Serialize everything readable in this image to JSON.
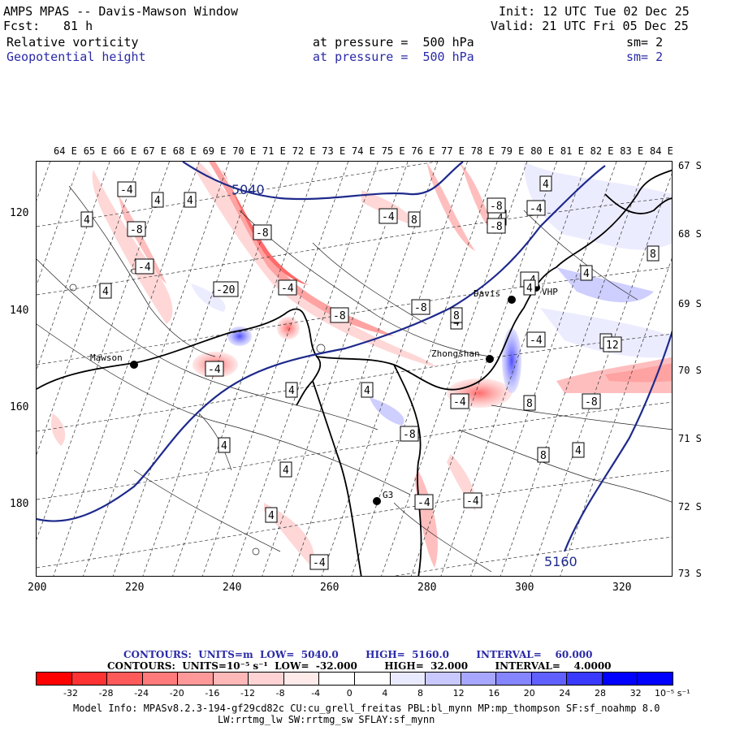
{
  "header": {
    "title": "AMPS MPAS -- Davis-Mawson Window",
    "fcst_label": "Fcst:",
    "fcst_value": "81 h",
    "init": "Init: 12 UTC Tue 02 Dec 25",
    "valid": "Valid: 21 UTC Fri 05 Dec 25",
    "field1": "Relative vorticity",
    "field1_level": "at pressure =  500 hPa",
    "field1_sm": "sm= 2",
    "field2": "Geopotential height",
    "field2_level": "at pressure =  500 hPa",
    "field2_sm": "sm= 2"
  },
  "map": {
    "top_lon_labels": [
      "64 E",
      "65 E",
      "66 E",
      "67 E",
      "68 E",
      "69 E",
      "70 E",
      "71 E",
      "72 E",
      "73 E",
      "74 E",
      "75 E",
      "76 E",
      "77 E",
      "78 E",
      "79 E",
      "80 E",
      "81 E",
      "82 E",
      "83 E",
      "84 E"
    ],
    "right_lat_labels": [
      "67 S",
      "68 S",
      "69 S",
      "70 S",
      "71 S",
      "72 S",
      "73 S"
    ],
    "left_y_labels": [
      "120",
      "140",
      "160",
      "180"
    ],
    "bottom_x_labels": [
      "200",
      "220",
      "240",
      "260",
      "280",
      "300",
      "320"
    ],
    "stations": [
      {
        "name": "Mawson"
      },
      {
        "name": "Davis"
      },
      {
        "name": "VHP"
      },
      {
        "name": "Zhongshan"
      },
      {
        "name": "G3"
      }
    ],
    "height_labels": [
      "5040",
      "5160"
    ],
    "vort_labels": [
      "-4",
      "4",
      "4",
      "4",
      "-8",
      "-4",
      "4",
      "-20",
      "-8",
      "-4",
      "-8",
      "-4",
      "8",
      "-8",
      "-4",
      "4",
      "8",
      "-4",
      "-8",
      "4",
      "-4",
      "4",
      "8",
      "8",
      "12",
      "4",
      "-8",
      "-4",
      "-4",
      "4",
      "8",
      "-8",
      "8",
      "4",
      "4",
      "4",
      "4",
      "-4",
      "-4",
      "-4",
      "-8",
      "-4",
      "4"
    ],
    "colors": {
      "coast": "#000000",
      "height": "#1e2a8c",
      "thin": "#222222"
    }
  },
  "footer": {
    "contours1": "CONTOURS:  UNITS=m  LOW=  5040.0        HIGH=  5160.0        INTERVAL=    60.000",
    "contours2": "CONTOURS:  UNITS=10⁻⁵ s⁻¹  LOW=  -32.000        HIGH=  32.000        INTERVAL=    4.0000",
    "colorbar_ticks": [
      "-32",
      "-28",
      "-24",
      "-20",
      "-16",
      "-12",
      "-8",
      "-4",
      "0",
      "4",
      "8",
      "12",
      "16",
      "20",
      "24",
      "28",
      "32"
    ],
    "colorbar_units": "10⁻⁵ s⁻¹",
    "colorbar_colors": [
      "#ff0000",
      "#ff3333",
      "#ff5a5a",
      "#ff7a7a",
      "#ff9999",
      "#ffb8b8",
      "#ffd3d3",
      "#ffeaea",
      "#ffffff",
      "#ffffff",
      "#eaeaff",
      "#c9c9ff",
      "#a7a7ff",
      "#8585ff",
      "#6060ff",
      "#3a3aff",
      "#0000ff",
      "#0000ff"
    ],
    "model_info": "Model Info: MPASv8.2.3-194-gf29cd82c CU:cu_grell_freitas PBL:bl_mynn MP:mp_thompson SF:sf_noahmp 8.0",
    "model_info2": "LW:rrtmg_lw SW:rrtmg_sw SFLAY:sf_mynn"
  }
}
